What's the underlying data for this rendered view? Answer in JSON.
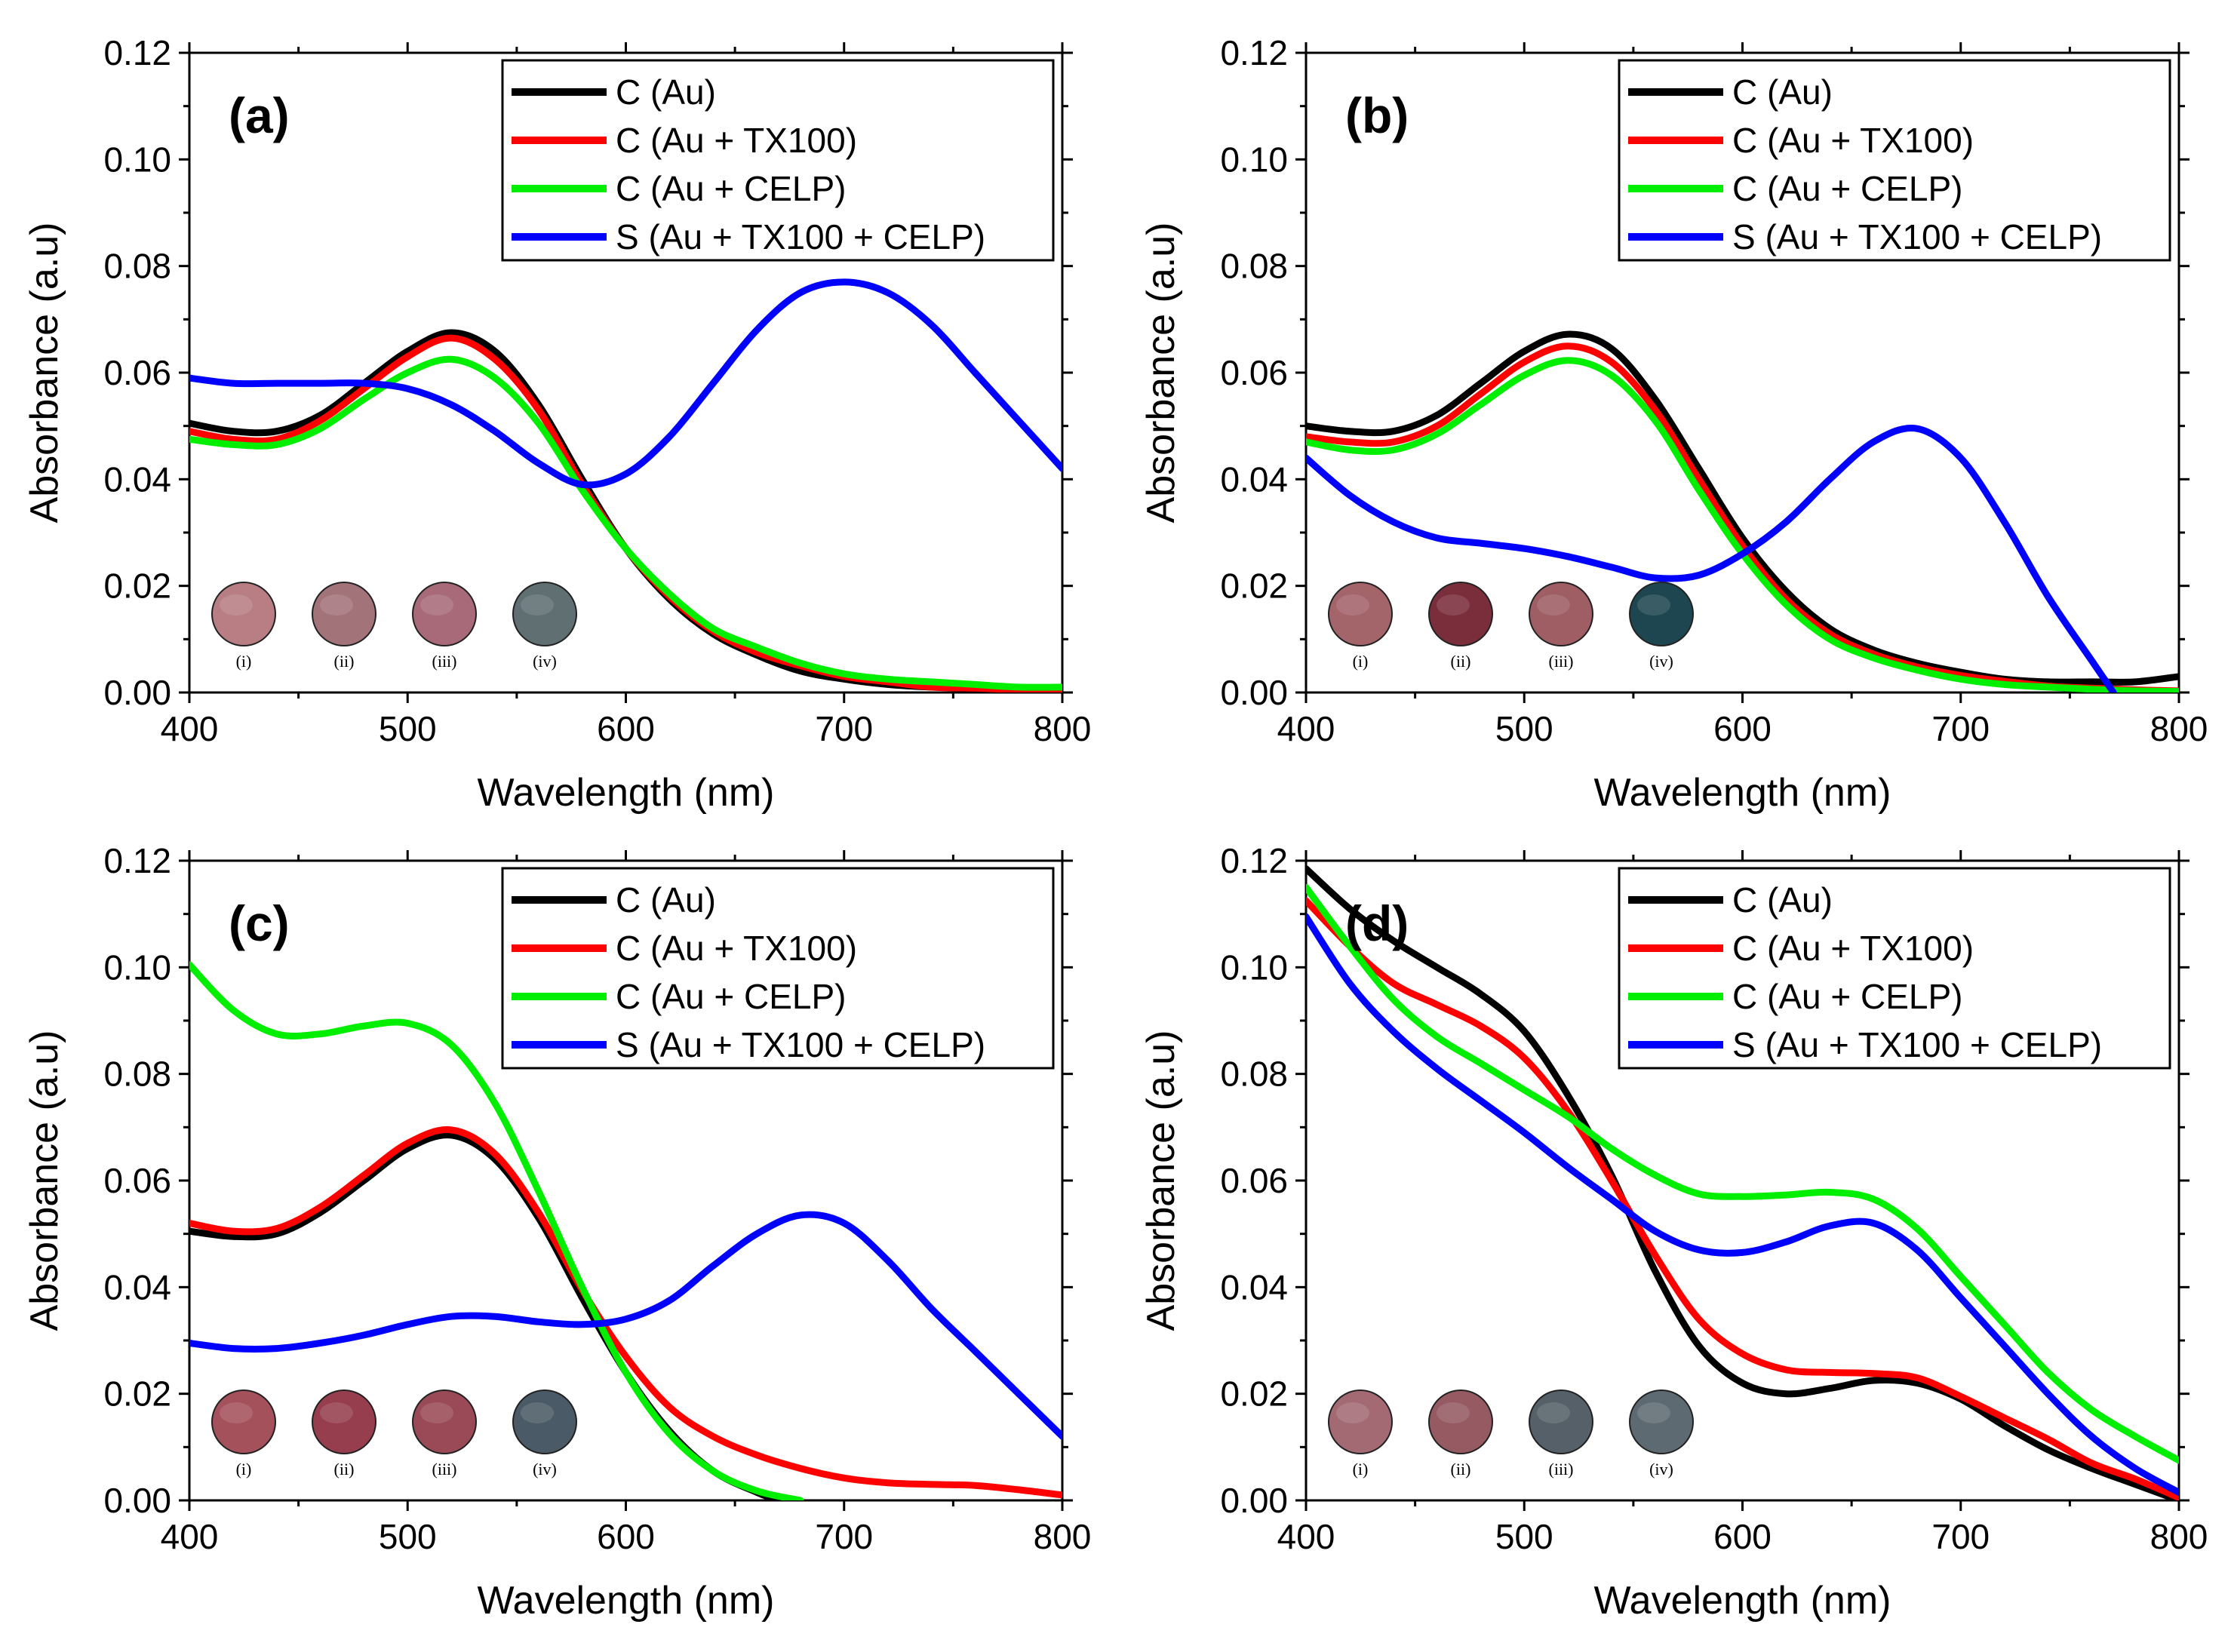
{
  "figure": {
    "legend": [
      {
        "name": "C (Au)",
        "color": "#000000"
      },
      {
        "name": "C (Au + TX100)",
        "color": "#ff0000"
      },
      {
        "name": "C (Au + CELP)",
        "color": "#00ee00"
      },
      {
        "name": "S (Au + TX100 + CELP)",
        "color": "#0000ff"
      }
    ],
    "swatch_labels": [
      "(i)",
      "(ii)",
      "(iii)",
      "(iv)"
    ]
  },
  "chart_data": [
    {
      "type": "line",
      "panel": "(a)",
      "xlabel": "Wavelength (nm)",
      "ylabel": "Absorbance (a.u)",
      "xlim": [
        400,
        800
      ],
      "ylim": [
        0,
        0.12
      ],
      "xticks": [
        "400",
        "500",
        "600",
        "700",
        "800"
      ],
      "yticks": [
        "0.00",
        "0.02",
        "0.04",
        "0.06",
        "0.08",
        "0.10",
        "0.12"
      ],
      "swatch_colors": [
        "#b87e84",
        "#a3737a",
        "#a86a78",
        "#5f6f72"
      ],
      "series": [
        {
          "name": "C (Au)",
          "color": "#000000",
          "x": [
            400,
            420,
            440,
            460,
            480,
            500,
            520,
            540,
            560,
            580,
            600,
            620,
            640,
            660,
            680,
            700,
            720,
            740,
            760,
            780,
            800
          ],
          "y": [
            0.0505,
            0.049,
            0.049,
            0.052,
            0.058,
            0.064,
            0.0675,
            0.064,
            0.054,
            0.04,
            0.027,
            0.0175,
            0.011,
            0.007,
            0.004,
            0.0025,
            0.0015,
            0.001,
            0.0008,
            0.0005,
            0.0005
          ]
        },
        {
          "name": "C (Au + TX100)",
          "color": "#ff0000",
          "x": [
            400,
            420,
            440,
            460,
            480,
            500,
            520,
            540,
            560,
            580,
            600,
            620,
            640,
            660,
            680,
            700,
            720,
            740,
            760,
            780,
            800
          ],
          "y": [
            0.049,
            0.0475,
            0.0475,
            0.051,
            0.057,
            0.063,
            0.0665,
            0.0625,
            0.053,
            0.039,
            0.027,
            0.018,
            0.0115,
            0.0075,
            0.005,
            0.003,
            0.002,
            0.001,
            0.0008,
            0.0005,
            0.0005
          ]
        },
        {
          "name": "C (Au + CELP)",
          "color": "#00ee00",
          "x": [
            400,
            420,
            440,
            460,
            480,
            500,
            520,
            540,
            560,
            580,
            600,
            620,
            640,
            660,
            680,
            700,
            720,
            740,
            760,
            780,
            800
          ],
          "y": [
            0.0475,
            0.0465,
            0.0465,
            0.0495,
            0.055,
            0.06,
            0.0625,
            0.059,
            0.0505,
            0.038,
            0.027,
            0.0185,
            0.012,
            0.0085,
            0.0055,
            0.0035,
            0.0025,
            0.002,
            0.0015,
            0.001,
            0.001
          ]
        },
        {
          "name": "S (Au + TX100 + CELP)",
          "color": "#0000ff",
          "x": [
            400,
            420,
            440,
            460,
            480,
            500,
            520,
            540,
            560,
            580,
            600,
            620,
            640,
            660,
            680,
            700,
            720,
            740,
            760,
            780,
            800
          ],
          "y": [
            0.059,
            0.058,
            0.058,
            0.058,
            0.058,
            0.057,
            0.054,
            0.049,
            0.043,
            0.039,
            0.041,
            0.048,
            0.058,
            0.068,
            0.075,
            0.077,
            0.075,
            0.069,
            0.06,
            0.051,
            0.042
          ]
        }
      ]
    },
    {
      "type": "line",
      "panel": "(b)",
      "xlabel": "Wavelength (nm)",
      "ylabel": "Absorbance (a.u)",
      "xlim": [
        400,
        800
      ],
      "ylim": [
        0,
        0.12
      ],
      "xticks": [
        "400",
        "500",
        "600",
        "700",
        "800"
      ],
      "yticks": [
        "0.00",
        "0.02",
        "0.04",
        "0.06",
        "0.08",
        "0.10",
        "0.12"
      ],
      "swatch_colors": [
        "#a3646a",
        "#7a2e3c",
        "#9e5e64",
        "#1e4650"
      ],
      "series": [
        {
          "name": "C (Au)",
          "color": "#000000",
          "x": [
            400,
            420,
            440,
            460,
            480,
            500,
            520,
            540,
            560,
            580,
            600,
            620,
            640,
            660,
            680,
            700,
            720,
            740,
            760,
            780,
            800
          ],
          "y": [
            0.05,
            0.049,
            0.049,
            0.052,
            0.058,
            0.064,
            0.0672,
            0.0645,
            0.055,
            0.042,
            0.029,
            0.019,
            0.012,
            0.008,
            0.0055,
            0.0038,
            0.0025,
            0.002,
            0.002,
            0.002,
            0.003
          ]
        },
        {
          "name": "C (Au + TX100)",
          "color": "#ff0000",
          "x": [
            400,
            420,
            440,
            460,
            480,
            500,
            520,
            540,
            560,
            580,
            600,
            620,
            640,
            660,
            680,
            700,
            720,
            740,
            760,
            780,
            800
          ],
          "y": [
            0.048,
            0.047,
            0.047,
            0.05,
            0.056,
            0.062,
            0.065,
            0.062,
            0.053,
            0.04,
            0.0275,
            0.0175,
            0.011,
            0.0072,
            0.0048,
            0.0032,
            0.0021,
            0.0012,
            0.0008,
            0.0005,
            0.0003
          ]
        },
        {
          "name": "C (Au + CELP)",
          "color": "#00ee00",
          "x": [
            400,
            420,
            440,
            460,
            480,
            500,
            520,
            540,
            560,
            580,
            600,
            620,
            640,
            660,
            680,
            700,
            720,
            740,
            760,
            780,
            800
          ],
          "y": [
            0.047,
            0.0455,
            0.0455,
            0.0485,
            0.054,
            0.0595,
            0.0623,
            0.0595,
            0.051,
            0.038,
            0.026,
            0.0165,
            0.01,
            0.0065,
            0.0042,
            0.0025,
            0.0015,
            0.001,
            0.0006,
            0.0003,
            0.0002
          ]
        },
        {
          "name": "S (Au + TX100 + CELP)",
          "color": "#0000ff",
          "x": [
            400,
            420,
            440,
            460,
            480,
            500,
            520,
            540,
            560,
            580,
            600,
            620,
            640,
            660,
            680,
            700,
            720,
            740,
            760,
            770
          ],
          "y": [
            0.044,
            0.037,
            0.032,
            0.029,
            0.028,
            0.027,
            0.0255,
            0.0235,
            0.0215,
            0.022,
            0.026,
            0.032,
            0.04,
            0.047,
            0.0495,
            0.044,
            0.032,
            0.018,
            0.006,
            0.0
          ]
        }
      ]
    },
    {
      "type": "line",
      "panel": "(c)",
      "xlabel": "Wavelength (nm)",
      "ylabel": "Absorbance (a.u)",
      "xlim": [
        400,
        800
      ],
      "ylim": [
        0,
        0.12
      ],
      "xticks": [
        "400",
        "500",
        "600",
        "700",
        "800"
      ],
      "yticks": [
        "0.00",
        "0.02",
        "0.04",
        "0.06",
        "0.08",
        "0.10",
        "0.12"
      ],
      "swatch_colors": [
        "#a4515c",
        "#963e4d",
        "#9a4a56",
        "#4a5a66"
      ],
      "series": [
        {
          "name": "C (Au)",
          "color": "#000000",
          "x": [
            400,
            420,
            440,
            460,
            480,
            500,
            520,
            540,
            560,
            580,
            600,
            620,
            640,
            660,
            670
          ],
          "y": [
            0.0505,
            0.0495,
            0.05,
            0.054,
            0.06,
            0.066,
            0.0685,
            0.064,
            0.053,
            0.038,
            0.024,
            0.013,
            0.0055,
            0.0015,
            0.0
          ]
        },
        {
          "name": "C (Au + TX100)",
          "color": "#ff0000",
          "x": [
            400,
            420,
            440,
            460,
            480,
            500,
            520,
            540,
            560,
            580,
            600,
            620,
            640,
            660,
            680,
            700,
            720,
            740,
            760,
            780,
            800
          ],
          "y": [
            0.052,
            0.0505,
            0.051,
            0.055,
            0.061,
            0.067,
            0.0695,
            0.065,
            0.054,
            0.0395,
            0.027,
            0.0175,
            0.012,
            0.0085,
            0.006,
            0.0042,
            0.0033,
            0.003,
            0.0028,
            0.002,
            0.001
          ]
        },
        {
          "name": "C (Au + CELP)",
          "color": "#00ee00",
          "x": [
            400,
            420,
            440,
            460,
            480,
            500,
            520,
            540,
            560,
            580,
            600,
            620,
            640,
            660,
            680
          ],
          "y": [
            0.1005,
            0.092,
            0.0875,
            0.0875,
            0.089,
            0.0895,
            0.0855,
            0.0745,
            0.058,
            0.04,
            0.024,
            0.0125,
            0.0055,
            0.0018,
            0.0
          ]
        },
        {
          "name": "S (Au + TX100 + CELP)",
          "color": "#0000ff",
          "x": [
            400,
            420,
            440,
            460,
            480,
            500,
            520,
            540,
            560,
            580,
            600,
            620,
            640,
            660,
            680,
            700,
            720,
            740,
            760,
            780,
            800
          ],
          "y": [
            0.0295,
            0.0285,
            0.0285,
            0.0295,
            0.031,
            0.033,
            0.0345,
            0.0345,
            0.0335,
            0.033,
            0.034,
            0.0375,
            0.044,
            0.05,
            0.0535,
            0.052,
            0.045,
            0.036,
            0.028,
            0.02,
            0.012
          ]
        }
      ]
    },
    {
      "type": "line",
      "panel": "(d)",
      "xlabel": "Wavelength (nm)",
      "ylabel": "Absorbance (a.u)",
      "xlim": [
        400,
        800
      ],
      "ylim": [
        0,
        0.12
      ],
      "xticks": [
        "400",
        "500",
        "600",
        "700",
        "800"
      ],
      "yticks": [
        "0.00",
        "0.02",
        "0.04",
        "0.06",
        "0.08",
        "0.10",
        "0.12"
      ],
      "swatch_colors": [
        "#a36a74",
        "#965a62",
        "#556068",
        "#5e6a72"
      ],
      "series": [
        {
          "name": "C (Au)",
          "color": "#000000",
          "x": [
            400,
            420,
            440,
            460,
            480,
            500,
            520,
            540,
            560,
            580,
            600,
            620,
            640,
            660,
            680,
            700,
            720,
            740,
            760,
            780,
            800
          ],
          "y": [
            0.1185,
            0.111,
            0.105,
            0.1,
            0.095,
            0.088,
            0.076,
            0.061,
            0.043,
            0.029,
            0.022,
            0.02,
            0.021,
            0.0225,
            0.022,
            0.019,
            0.014,
            0.0095,
            0.006,
            0.003,
            0.0
          ]
        },
        {
          "name": "C (Au + TX100)",
          "color": "#ff0000",
          "x": [
            400,
            420,
            440,
            460,
            480,
            500,
            520,
            540,
            560,
            580,
            600,
            620,
            640,
            660,
            680,
            700,
            720,
            740,
            760,
            780,
            800
          ],
          "y": [
            0.1125,
            0.104,
            0.097,
            0.093,
            0.089,
            0.083,
            0.073,
            0.06,
            0.046,
            0.034,
            0.0275,
            0.0245,
            0.024,
            0.0238,
            0.023,
            0.0195,
            0.0155,
            0.0115,
            0.007,
            0.004,
            0.0005
          ]
        },
        {
          "name": "C (Au + CELP)",
          "color": "#00ee00",
          "x": [
            400,
            420,
            440,
            460,
            480,
            500,
            520,
            540,
            560,
            580,
            600,
            620,
            640,
            660,
            680,
            700,
            720,
            740,
            760,
            780,
            800
          ],
          "y": [
            0.115,
            0.104,
            0.094,
            0.087,
            0.082,
            0.077,
            0.072,
            0.066,
            0.061,
            0.0575,
            0.057,
            0.0573,
            0.0578,
            0.0565,
            0.051,
            0.042,
            0.033,
            0.024,
            0.017,
            0.012,
            0.0075
          ]
        },
        {
          "name": "S (Au + TX100 + CELP)",
          "color": "#0000ff",
          "x": [
            400,
            420,
            440,
            460,
            480,
            500,
            520,
            540,
            560,
            580,
            600,
            620,
            640,
            660,
            680,
            700,
            720,
            740,
            760,
            780,
            800
          ],
          "y": [
            0.1095,
            0.097,
            0.088,
            0.081,
            0.075,
            0.069,
            0.0625,
            0.0565,
            0.0505,
            0.047,
            0.0465,
            0.0485,
            0.0515,
            0.052,
            0.047,
            0.038,
            0.029,
            0.02,
            0.012,
            0.006,
            0.0015
          ]
        }
      ]
    }
  ]
}
